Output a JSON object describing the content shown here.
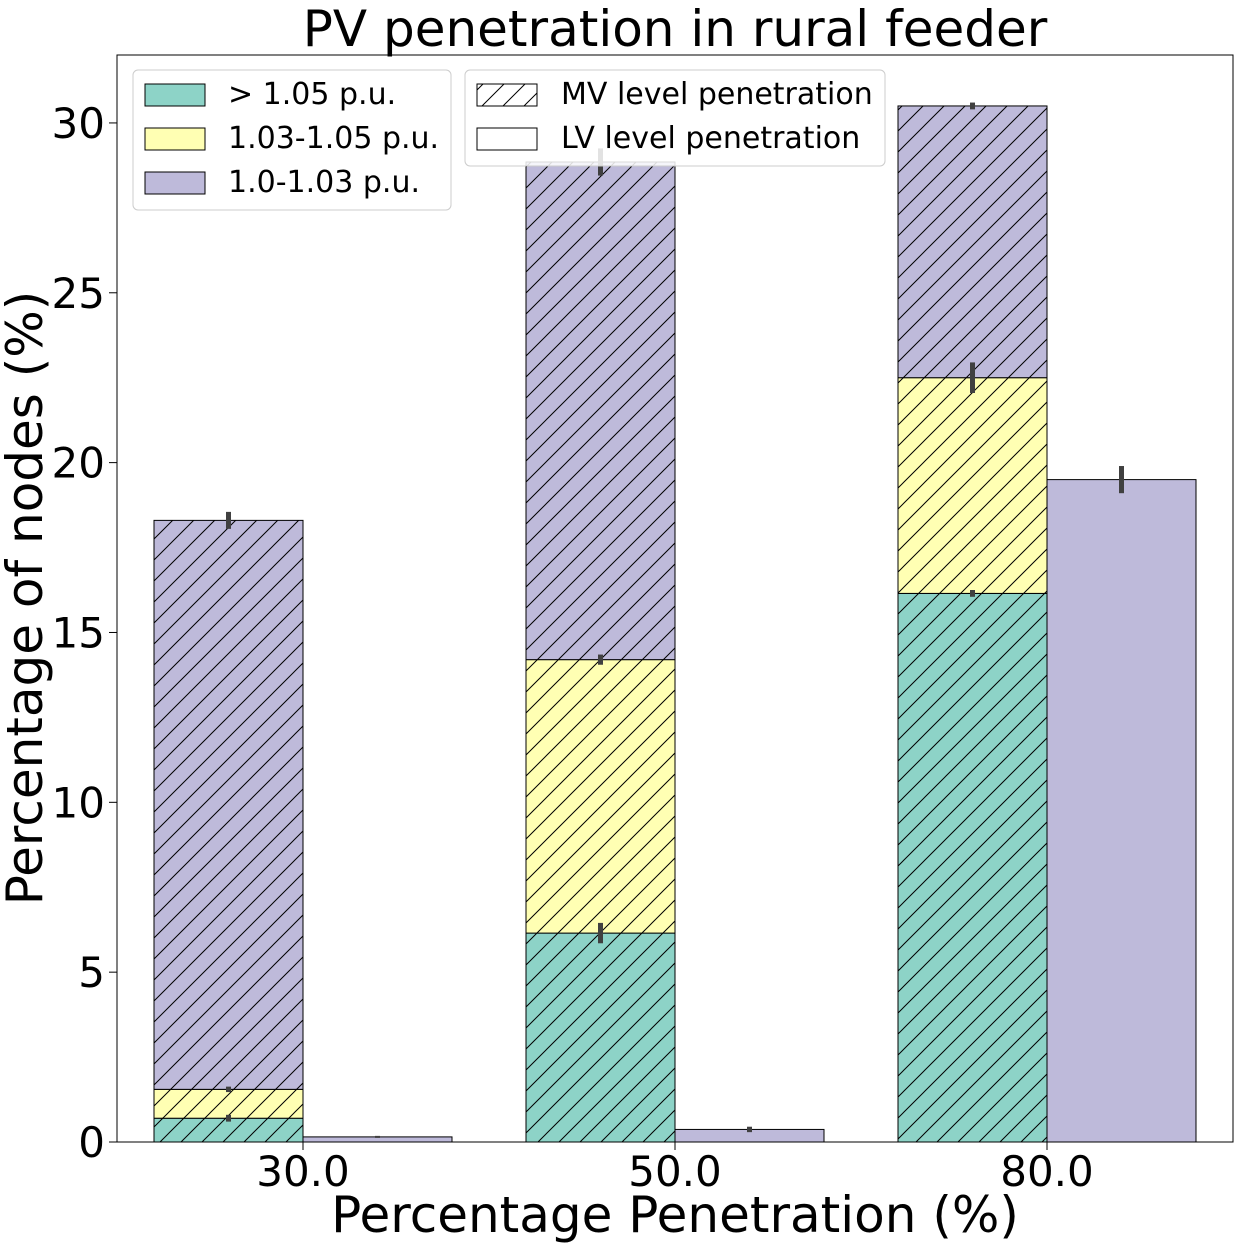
{
  "chart_data": {
    "type": "bar",
    "title": "PV penetration in rural feeder",
    "xlabel": "Percentage Penetration (%)",
    "ylabel": "Percentage of nodes (%)",
    "categories": [
      "30.0",
      "50.0",
      "80.0"
    ],
    "ylim": [
      0,
      32
    ],
    "yticks": [
      0,
      5,
      10,
      15,
      20,
      25,
      30
    ],
    "grid": false,
    "legend_voltage": {
      "placement": "upper-left",
      "entries": [
        {
          "label": "> 1.05 p.u.",
          "color": "#8dd3c7"
        },
        {
          "label": "1.03-1.05 p.u.",
          "color": "#ffffb3"
        },
        {
          "label": "1.0-1.03 p.u.",
          "color": "#bebada"
        }
      ]
    },
    "legend_level": {
      "placement": "upper-center",
      "entries": [
        {
          "label": "MV level penetration",
          "hatch": true
        },
        {
          "label": "LV level penetration",
          "hatch": false
        }
      ]
    },
    "mv_series": [
      {
        "name": "> 1.05 p.u.",
        "color": "#8dd3c7",
        "values": [
          0.7,
          6.15,
          16.15
        ],
        "error": [
          0.1,
          0.3,
          0.1
        ]
      },
      {
        "name": "1.03-1.05 p.u.",
        "color": "#ffffb3",
        "values": [
          0.85,
          8.05,
          6.35
        ],
        "error": [
          0.08,
          0.15,
          0.45
        ]
      },
      {
        "name": "1.0-1.03 p.u.",
        "color": "#bebada",
        "values": [
          16.75,
          14.65,
          8.0
        ],
        "error": [
          0.25,
          0.4,
          0.1
        ]
      }
    ],
    "lv_series": [
      {
        "name": "1.0-1.03 p.u.",
        "color": "#bebada",
        "values": [
          0.15,
          0.37,
          19.5
        ],
        "error": [
          0.03,
          0.08,
          0.4
        ]
      }
    ]
  }
}
